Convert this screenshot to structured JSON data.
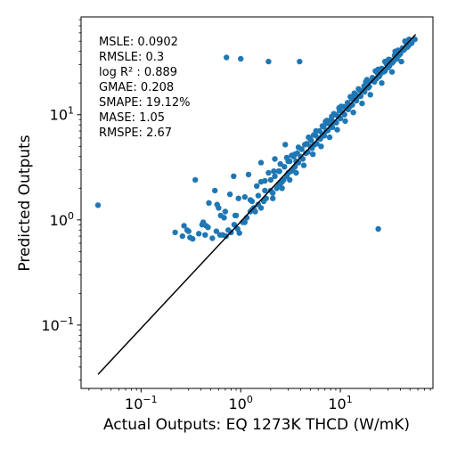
{
  "chart_data": {
    "type": "scatter",
    "xlabel": "Actual Outputs: EQ 1273K THCD (W/mK)",
    "ylabel": "Predicted Outputs",
    "x_scale": "log",
    "y_scale": "log",
    "xlim": [
      0.025,
      85
    ],
    "ylim": [
      0.025,
      85
    ],
    "x_ticks": [
      {
        "value": 0.1,
        "base": "10",
        "exp": "−1"
      },
      {
        "value": 1,
        "base": "10",
        "exp": "0"
      },
      {
        "value": 10,
        "base": "10",
        "exp": "1"
      }
    ],
    "y_ticks": [
      {
        "value": 0.1,
        "base": "10",
        "exp": "−1"
      },
      {
        "value": 1,
        "base": "10",
        "exp": "0"
      },
      {
        "value": 10,
        "base": "10",
        "exp": "1"
      }
    ],
    "grid": false,
    "marker_color": "#1f77b4",
    "reference_line": {
      "x": [
        0.037,
        57
      ],
      "y": [
        0.034,
        58
      ],
      "color": "#000000"
    },
    "metrics": [
      "MSLE: 0.0902",
      "RMSLE: 0.3",
      "log R² : 0.889",
      "GMAE: 0.208",
      "SMAPE: 19.12%",
      "MASE: 1.05",
      "RMSPE: 2.67"
    ],
    "points": {
      "x": [
        0.037,
        0.72,
        1.0,
        1.9,
        3.9,
        24.0,
        0.22,
        0.27,
        0.29,
        0.31,
        0.33,
        0.38,
        0.42,
        0.44,
        0.47,
        0.52,
        0.57,
        0.63,
        0.66,
        0.71,
        0.75,
        0.8,
        0.86,
        0.93,
        0.97,
        1.05,
        1.15,
        1.25,
        1.35,
        0.35,
        0.55,
        0.85,
        1.2,
        1.6,
        2.2,
        2.8,
        0.6,
        0.7,
        0.9,
        1.1,
        1.3,
        1.5,
        1.7,
        2.0,
        2.4,
        2.6,
        3.0,
        3.3,
        3.6,
        4.0,
        4.5,
        5.0,
        5.5,
        6.0,
        6.6,
        7.2,
        8.0,
        8.8,
        9.5,
        10.5,
        11.5,
        12.5,
        14.0,
        15.5,
        17.0,
        19.0,
        21.0,
        23.0,
        25.0,
        28.0,
        31.0,
        34.0,
        37.0,
        40.0,
        44.0,
        48.0,
        52.0,
        56.0,
        1.4,
        1.6,
        1.8,
        2.1,
        2.3,
        2.5,
        2.7,
        2.9,
        3.2,
        3.5,
        3.8,
        4.2,
        4.7,
        5.2,
        5.8,
        6.3,
        6.9,
        7.5,
        8.3,
        9.1,
        10.0,
        11.0,
        12.0,
        13.2,
        14.5,
        16.0,
        17.5,
        19.5,
        22.0,
        24.5,
        27.0,
        30.0,
        33.0,
        36.0,
        39.0,
        43.0,
        47.0,
        50.0,
        1.3,
        1.5,
        1.75,
        2.0,
        2.2,
        2.45,
        2.75,
        3.1,
        3.4,
        3.7,
        4.1,
        4.6,
        5.1,
        5.6,
        6.2,
        6.8,
        7.4,
        8.1,
        8.9,
        9.8,
        10.8,
        11.8,
        13.0,
        14.3,
        15.7,
        17.3,
        19.0,
        21.0,
        23.5,
        26.0,
        29.0,
        32.0,
        35.0,
        38.5,
        42.0,
        46.0,
        2.1,
        2.6,
        3.1,
        3.6,
        4.3,
        5.3,
        6.4,
        7.8,
        9.3,
        11.2,
        13.5,
        16.5,
        20.0,
        26.0,
        33.0,
        41.0,
        2.4,
        3.0,
        3.5,
        4.4,
        5.4,
        6.6,
        8.2,
        10.2,
        12.6,
        15.2,
        18.5,
        22.5,
        28.0,
        35.5,
        44.5,
        1.9,
        2.9,
        4.8,
        7.1,
        9.7,
        13.8,
        18.0,
        24.0,
        30.5,
        38.0,
        49.0,
        0.48,
        0.68,
        0.95,
        1.45,
        2.15,
        3.25,
        4.9,
        7.3,
        1.1,
        1.6,
        2.5,
        3.8,
        5.7,
        8.6,
        0.45,
        0.62,
        0.88,
        1.25,
        1.75,
        0.78,
        0.58,
        0.41,
        0.3,
        0.26
      ],
      "y": [
        1.38,
        35.0,
        34.0,
        32.0,
        32.0,
        0.82,
        0.76,
        0.88,
        0.8,
        0.68,
        0.66,
        0.74,
        0.95,
        0.72,
        0.85,
        0.67,
        0.78,
        1.1,
        0.72,
        0.7,
        0.8,
        0.76,
        0.9,
        0.82,
        0.75,
        0.95,
        1.05,
        1.2,
        1.3,
        2.4,
        1.9,
        2.6,
        2.7,
        3.5,
        3.8,
        5.2,
        1.3,
        1.2,
        1.1,
        0.95,
        1.25,
        1.4,
        1.5,
        1.9,
        2.2,
        2.3,
        2.8,
        3.0,
        3.6,
        4.0,
        4.3,
        5.0,
        5.2,
        6.0,
        6.5,
        7.0,
        8.0,
        8.5,
        9.6,
        10.5,
        11.5,
        12.0,
        14.5,
        15.0,
        17.0,
        18.0,
        21.0,
        22.0,
        24.0,
        26.0,
        29.0,
        32.0,
        34.0,
        38.0,
        42.0,
        45.0,
        48.0,
        52.0,
        1.2,
        1.3,
        1.6,
        1.8,
        2.0,
        2.2,
        2.4,
        2.6,
        2.9,
        3.2,
        3.5,
        3.8,
        4.4,
        4.8,
        5.3,
        5.9,
        6.3,
        7.1,
        7.6,
        8.4,
        9.2,
        10.0,
        11.2,
        12.4,
        13.6,
        15.0,
        16.5,
        18.5,
        20.5,
        23.0,
        25.5,
        28.0,
        31.0,
        34.0,
        37.0,
        41.0,
        44.0,
        47.0,
        1.5,
        1.7,
        1.9,
        2.4,
        2.6,
        2.9,
        3.2,
        3.6,
        4.0,
        4.3,
        4.7,
        5.3,
        5.7,
        6.4,
        7.0,
        7.7,
        8.3,
        9.0,
        10.0,
        10.9,
        11.9,
        13.0,
        14.1,
        15.5,
        17.0,
        18.7,
        20.5,
        22.5,
        25.0,
        27.5,
        30.5,
        33.0,
        36.5,
        39.0,
        43.0,
        47.5,
        1.6,
        2.0,
        2.4,
        2.8,
        3.3,
        4.2,
        5.0,
        6.1,
        7.2,
        8.7,
        10.5,
        12.8,
        15.5,
        20.0,
        25.5,
        32.0,
        2.9,
        3.6,
        4.2,
        5.2,
        6.4,
        7.8,
        9.6,
        12.0,
        14.8,
        17.6,
        21.5,
        26.0,
        32.0,
        40.0,
        50.0,
        2.8,
        3.9,
        6.1,
        8.6,
        11.6,
        16.0,
        20.5,
        27.0,
        33.5,
        41.0,
        52.0,
        1.45,
        1.05,
        1.6,
        2.1,
        2.9,
        4.1,
        6.0,
        8.8,
        1.65,
        2.3,
        3.4,
        4.9,
        7.0,
        10.2,
        0.88,
        0.72,
        1.1,
        1.55,
        2.35,
        1.75,
        1.4,
        0.9,
        0.78,
        0.7
      ]
    }
  }
}
